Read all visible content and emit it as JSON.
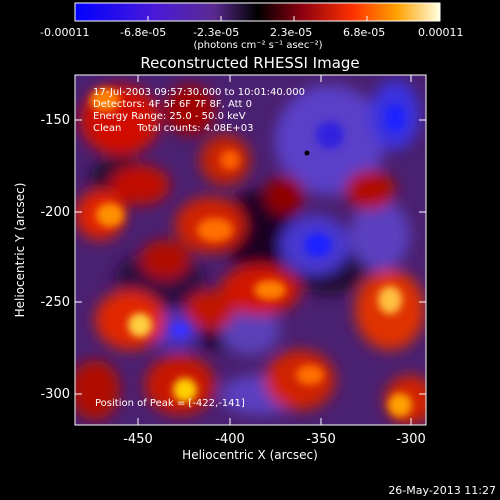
{
  "colorbar": {
    "tick_labels": [
      "-0.00011",
      "-6.8e-05",
      "-2.3e-05",
      "2.3e-05",
      "6.8e-05",
      "0.00011"
    ],
    "unit_line": "(photons cm⁻² s⁻¹ asec⁻²)"
  },
  "image": {
    "title": "Reconstructed RHESSI Image",
    "info_lines": [
      "17-Jul-2003 09:57:30.000 to 10:01:40.000",
      "Detectors: 4F 5F 6F 7F 8F, Att 0",
      "Energy Range: 25.0 - 50.0 keV",
      "Clean     Total counts: 4.08E+03"
    ],
    "peak_label": "Position of Peak = [-422,-141]",
    "x_axis": {
      "label": "Heliocentric X (arcsec)",
      "ticks": [
        "-450",
        "-400",
        "-350",
        "-300"
      ]
    },
    "y_axis": {
      "label": "Heliocentric Y (arcsec)",
      "ticks": [
        "-150",
        "-200",
        "-250",
        "-300"
      ]
    }
  },
  "footer": {
    "timestamp": "26-May-2013 11:27"
  }
}
